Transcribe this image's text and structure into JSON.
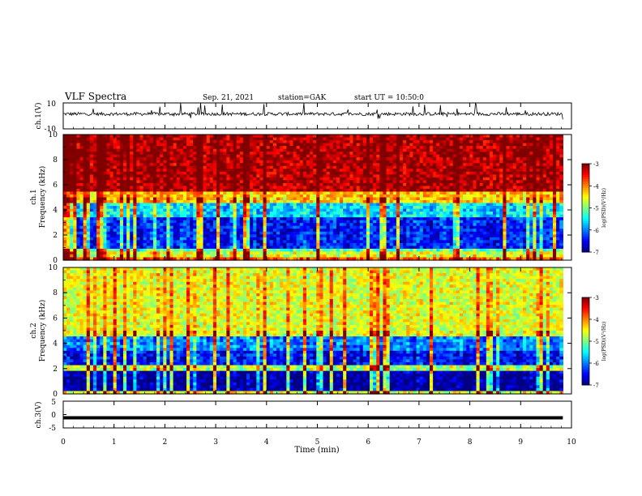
{
  "header": {
    "title": "VLF Spectra",
    "date": "Sep. 21, 2021",
    "station": "station=GAK",
    "start": "start UT =  10:50:0"
  },
  "chart_data": {
    "type": "heatmap",
    "x_axis": {
      "label": "Time (min)",
      "range": [
        0,
        10
      ],
      "ticks": [
        "0",
        "1",
        "2",
        "3",
        "4",
        "5",
        "6",
        "7",
        "8",
        "9",
        "10"
      ],
      "data_end_min": 9.83
    },
    "panels": [
      {
        "id": "ch1-waveform",
        "type": "line",
        "ylabel": "ch.1(V)",
        "ylim": [
          -10,
          10
        ],
        "tick_labels": [
          "10",
          "-10"
        ],
        "approx_level_v": 1.5,
        "line_color": "#000000"
      },
      {
        "id": "ch1-spectrogram",
        "type": "heatmap",
        "ylabel_top": "ch.1",
        "ylabel": "Frequency (kHz)",
        "ylim": [
          0,
          10
        ],
        "tick_labels": [
          "0",
          "2",
          "4",
          "6",
          "8",
          "10"
        ],
        "power_bands_log": [
          {
            "f_from": 0.0,
            "f_to": 0.2,
            "level": -3.8
          },
          {
            "f_from": 0.2,
            "f_to": 0.6,
            "level": -4.6
          },
          {
            "f_from": 0.6,
            "f_to": 1.0,
            "level": -5.2
          },
          {
            "f_from": 1.0,
            "f_to": 3.5,
            "level": -6.4
          },
          {
            "f_from": 3.5,
            "f_to": 4.5,
            "level": -5.6
          },
          {
            "f_from": 4.5,
            "f_to": 5.5,
            "level": -4.3
          },
          {
            "f_from": 5.5,
            "f_to": 10.0,
            "level": -3.2
          }
        ],
        "colorbar": {
          "label": "log(PSD)(V²/Hz)",
          "range": [
            -7,
            -3
          ],
          "tick_labels": [
            "-3",
            "-4",
            "-5",
            "-6",
            "-7"
          ]
        }
      },
      {
        "id": "ch2-spectrogram",
        "type": "heatmap",
        "ylabel_top": "ch.2",
        "ylabel": "Frequency (kHz)",
        "ylim": [
          0,
          10
        ],
        "tick_labels": [
          "0",
          "2",
          "4",
          "6",
          "8",
          "10"
        ],
        "power_bands_log": [
          {
            "f_from": 0.0,
            "f_to": 0.3,
            "level": -4.6
          },
          {
            "f_from": 0.3,
            "f_to": 1.8,
            "level": -6.9
          },
          {
            "f_from": 1.8,
            "f_to": 2.2,
            "level": -4.8
          },
          {
            "f_from": 2.2,
            "f_to": 3.5,
            "level": -6.5
          },
          {
            "f_from": 3.5,
            "f_to": 4.6,
            "level": -6.0
          },
          {
            "f_from": 4.6,
            "f_to": 10.0,
            "level": -4.6
          }
        ],
        "colorbar": {
          "label": "log(PSD)(V²/Hz)",
          "range": [
            -7,
            -3
          ],
          "tick_labels": [
            "-3",
            "-4",
            "-5",
            "-6",
            "-7"
          ]
        }
      },
      {
        "id": "ch3-waveform",
        "type": "line",
        "ylabel": "ch.3(V)",
        "ylim": [
          -5,
          5
        ],
        "tick_labels": [
          "5",
          "0",
          "-5"
        ],
        "approx_level_v": -1.2,
        "line_color": "#000000"
      }
    ]
  }
}
